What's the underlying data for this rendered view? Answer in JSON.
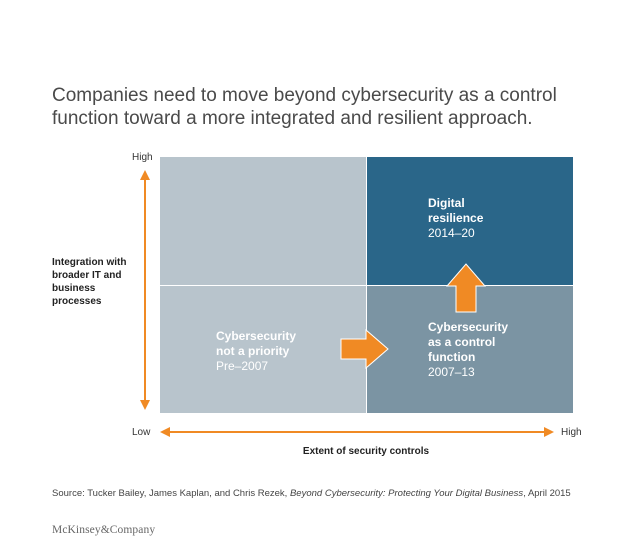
{
  "title": {
    "line1": "Companies need to move beyond cybersecurity as a control",
    "line2": "function toward a more integrated and resilient approach."
  },
  "y_axis": {
    "high": "High",
    "low": "Low",
    "label_line1": "Integration with",
    "label_line2": "broader IT and",
    "label_line3": "business",
    "label_line4": "processes"
  },
  "x_axis": {
    "high": "High",
    "label": "Extent of security controls"
  },
  "quadrants": {
    "top_right": {
      "line1": "Digital",
      "line2": "resilience",
      "period": "2014–20",
      "color": "#2a6689"
    },
    "bottom_left": {
      "line1": "Cybersecurity",
      "line2": "not a priority",
      "period": "Pre–2007",
      "color": "#b8c4cc"
    },
    "bottom_right": {
      "line1": "Cybersecurity",
      "line2": "as a control",
      "line3": "function",
      "period": "2007–13",
      "color": "#7b94a3"
    },
    "top_left": {
      "color": "#b8c4cc"
    }
  },
  "arrow_color": "#f08a24",
  "source": {
    "prefix": "Source: Tucker Bailey, James Kaplan, and Chris Rezek, ",
    "title": "Beyond Cybersecurity: Protecting Your Digital Business",
    "suffix": ", April 2015"
  },
  "logo": "McKinsey&Company"
}
